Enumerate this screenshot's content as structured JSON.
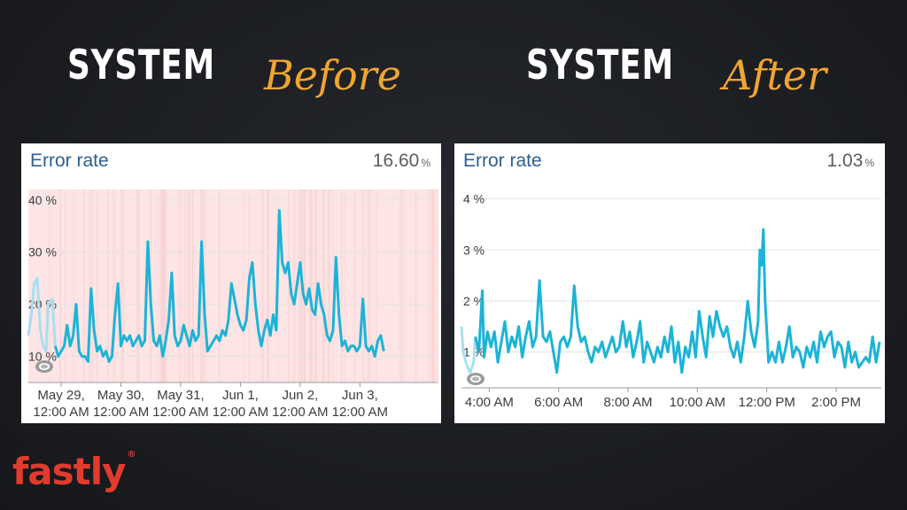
{
  "headings": {
    "left": {
      "word": "SYSTEM",
      "script": "Before"
    },
    "right": {
      "word": "SYSTEM",
      "script": "After"
    }
  },
  "logo": {
    "text": "fastly",
    "reg": "®"
  },
  "colors": {
    "line": "#1cb4d6",
    "heading_script": "#f0a531",
    "logo": "#e23b2e",
    "band": "#f6c9cb"
  },
  "chart_data": [
    {
      "type": "line",
      "title": "Error rate",
      "current_value": "16.60",
      "current_unit": "%",
      "y_ticks": [
        "40 %",
        "30 %",
        "20 %",
        "10 %"
      ],
      "y_tick_values": [
        40,
        30,
        20,
        10
      ],
      "ylim": [
        5,
        42
      ],
      "x_tick_labels": [
        [
          "May 29,",
          "12:00 AM"
        ],
        [
          "May 30,",
          "12:00 AM"
        ],
        [
          "May 31,",
          "12:00 AM"
        ],
        [
          "Jun 1,",
          "12:00 AM"
        ],
        [
          "Jun 2,",
          "12:00 AM"
        ],
        [
          "Jun 3,",
          "12:00 AM"
        ]
      ],
      "x_days": [
        0,
        1,
        2,
        3,
        4,
        5
      ],
      "xlim": [
        -0.55,
        6.3
      ],
      "background_bands": true,
      "series": [
        {
          "values": [
            [
              -0.55,
              14
            ],
            [
              -0.5,
              18
            ],
            [
              -0.45,
              24
            ],
            [
              -0.4,
              25
            ],
            [
              -0.35,
              15
            ],
            [
              -0.3,
              12
            ],
            [
              -0.25,
              11
            ],
            [
              -0.22,
              20
            ],
            [
              -0.15,
              21
            ],
            [
              -0.1,
              12
            ],
            [
              -0.05,
              10
            ],
            [
              0,
              11
            ],
            [
              0.05,
              12
            ],
            [
              0.1,
              16
            ],
            [
              0.15,
              12
            ],
            [
              0.2,
              14
            ],
            [
              0.25,
              20
            ],
            [
              0.3,
              11
            ],
            [
              0.35,
              10
            ],
            [
              0.4,
              10
            ],
            [
              0.45,
              9
            ],
            [
              0.5,
              23
            ],
            [
              0.55,
              15
            ],
            [
              0.6,
              11
            ],
            [
              0.65,
              12
            ],
            [
              0.7,
              10
            ],
            [
              0.75,
              11
            ],
            [
              0.8,
              9
            ],
            [
              0.85,
              10
            ],
            [
              0.9,
              18
            ],
            [
              0.95,
              24
            ],
            [
              1.0,
              12
            ],
            [
              1.05,
              14
            ],
            [
              1.1,
              13
            ],
            [
              1.15,
              14
            ],
            [
              1.2,
              12
            ],
            [
              1.25,
              13
            ],
            [
              1.3,
              14
            ],
            [
              1.35,
              12
            ],
            [
              1.4,
              13
            ],
            [
              1.45,
              32
            ],
            [
              1.5,
              20
            ],
            [
              1.55,
              13
            ],
            [
              1.6,
              12
            ],
            [
              1.65,
              14
            ],
            [
              1.7,
              10
            ],
            [
              1.75,
              13
            ],
            [
              1.8,
              17
            ],
            [
              1.85,
              26
            ],
            [
              1.9,
              14
            ],
            [
              1.95,
              12
            ],
            [
              2.0,
              13
            ],
            [
              2.05,
              16
            ],
            [
              2.1,
              14
            ],
            [
              2.15,
              12
            ],
            [
              2.2,
              15
            ],
            [
              2.25,
              13
            ],
            [
              2.3,
              14
            ],
            [
              2.35,
              32
            ],
            [
              2.4,
              18
            ],
            [
              2.45,
              11
            ],
            [
              2.5,
              12
            ],
            [
              2.55,
              13
            ],
            [
              2.6,
              14
            ],
            [
              2.65,
              13
            ],
            [
              2.7,
              15
            ],
            [
              2.75,
              14
            ],
            [
              2.8,
              17
            ],
            [
              2.85,
              24
            ],
            [
              2.9,
              21
            ],
            [
              2.95,
              18
            ],
            [
              3.0,
              16
            ],
            [
              3.05,
              15
            ],
            [
              3.1,
              17
            ],
            [
              3.15,
              25
            ],
            [
              3.2,
              28
            ],
            [
              3.25,
              20
            ],
            [
              3.3,
              15
            ],
            [
              3.35,
              12
            ],
            [
              3.4,
              15
            ],
            [
              3.45,
              17
            ],
            [
              3.5,
              14
            ],
            [
              3.55,
              18
            ],
            [
              3.6,
              15
            ],
            [
              3.65,
              38
            ],
            [
              3.7,
              28
            ],
            [
              3.75,
              26
            ],
            [
              3.8,
              28
            ],
            [
              3.85,
              22
            ],
            [
              3.9,
              20
            ],
            [
              3.95,
              24
            ],
            [
              4.0,
              28
            ],
            [
              4.05,
              22
            ],
            [
              4.1,
              20
            ],
            [
              4.15,
              23
            ],
            [
              4.2,
              19
            ],
            [
              4.25,
              18
            ],
            [
              4.3,
              24
            ],
            [
              4.35,
              20
            ],
            [
              4.4,
              18
            ],
            [
              4.45,
              14
            ],
            [
              4.5,
              13
            ],
            [
              4.55,
              15
            ],
            [
              4.6,
              29
            ],
            [
              4.65,
              18
            ],
            [
              4.7,
              12
            ],
            [
              4.75,
              13
            ],
            [
              4.8,
              11
            ],
            [
              4.85,
              12
            ],
            [
              4.9,
              12
            ],
            [
              4.95,
              11
            ],
            [
              5.0,
              12
            ],
            [
              5.05,
              21
            ],
            [
              5.1,
              12
            ],
            [
              5.15,
              11
            ],
            [
              5.2,
              12
            ],
            [
              5.25,
              10
            ],
            [
              5.3,
              13
            ],
            [
              5.35,
              14
            ],
            [
              5.4,
              11
            ]
          ]
        }
      ]
    },
    {
      "type": "line",
      "title": "Error rate",
      "current_value": "1.03",
      "current_unit": "%",
      "y_ticks": [
        "4 %",
        "3 %",
        "2 %",
        "1 %"
      ],
      "y_tick_values": [
        4,
        3,
        2,
        1
      ],
      "ylim": [
        0.3,
        4.15
      ],
      "x_tick_labels": [
        "4:00 AM",
        "6:00 AM",
        "8:00 AM",
        "10:00 AM",
        "12:00 PM",
        "2:00 PM"
      ],
      "x_hours": [
        4,
        6,
        8,
        10,
        12,
        14
      ],
      "xlim": [
        3.2,
        15.3
      ],
      "background_bands": false,
      "series": [
        {
          "values": [
            [
              3.2,
              1.5
            ],
            [
              3.25,
              1.0
            ],
            [
              3.35,
              0.75
            ],
            [
              3.45,
              0.6
            ],
            [
              3.55,
              0.8
            ],
            [
              3.6,
              1.3
            ],
            [
              3.7,
              1.0
            ],
            [
              3.8,
              2.2
            ],
            [
              3.85,
              0.9
            ],
            [
              3.95,
              1.4
            ],
            [
              4.05,
              1.1
            ],
            [
              4.15,
              1.4
            ],
            [
              4.25,
              0.8
            ],
            [
              4.35,
              1.2
            ],
            [
              4.45,
              1.6
            ],
            [
              4.55,
              1.0
            ],
            [
              4.65,
              1.3
            ],
            [
              4.75,
              1.1
            ],
            [
              4.85,
              1.5
            ],
            [
              4.95,
              0.9
            ],
            [
              5.05,
              1.3
            ],
            [
              5.15,
              1.6
            ],
            [
              5.25,
              1.1
            ],
            [
              5.35,
              1.3
            ],
            [
              5.45,
              2.4
            ],
            [
              5.55,
              1.3
            ],
            [
              5.65,
              1.2
            ],
            [
              5.75,
              1.4
            ],
            [
              5.85,
              1.0
            ],
            [
              5.95,
              0.6
            ],
            [
              6.05,
              1.2
            ],
            [
              6.15,
              1.3
            ],
            [
              6.25,
              1.1
            ],
            [
              6.35,
              1.3
            ],
            [
              6.45,
              2.3
            ],
            [
              6.55,
              1.5
            ],
            [
              6.65,
              1.2
            ],
            [
              6.75,
              1.3
            ],
            [
              6.85,
              1.0
            ],
            [
              6.95,
              0.8
            ],
            [
              7.05,
              1.1
            ],
            [
              7.15,
              1.0
            ],
            [
              7.25,
              1.2
            ],
            [
              7.35,
              0.9
            ],
            [
              7.45,
              1.1
            ],
            [
              7.55,
              1.3
            ],
            [
              7.65,
              1.0
            ],
            [
              7.75,
              1.1
            ],
            [
              7.85,
              1.6
            ],
            [
              7.95,
              1.1
            ],
            [
              8.05,
              1.4
            ],
            [
              8.15,
              0.9
            ],
            [
              8.25,
              1.2
            ],
            [
              8.35,
              1.6
            ],
            [
              8.45,
              0.8
            ],
            [
              8.55,
              1.2
            ],
            [
              8.65,
              1.0
            ],
            [
              8.75,
              0.8
            ],
            [
              8.85,
              1.1
            ],
            [
              8.95,
              0.9
            ],
            [
              9.05,
              1.3
            ],
            [
              9.15,
              1.0
            ],
            [
              9.25,
              1.5
            ],
            [
              9.35,
              0.8
            ],
            [
              9.45,
              1.2
            ],
            [
              9.55,
              0.6
            ],
            [
              9.65,
              1.1
            ],
            [
              9.75,
              0.9
            ],
            [
              9.85,
              1.4
            ],
            [
              9.95,
              0.9
            ],
            [
              10.05,
              1.8
            ],
            [
              10.15,
              1.3
            ],
            [
              10.25,
              0.9
            ],
            [
              10.35,
              1.7
            ],
            [
              10.45,
              1.3
            ],
            [
              10.55,
              1.8
            ],
            [
              10.65,
              1.5
            ],
            [
              10.75,
              1.3
            ],
            [
              10.85,
              1.5
            ],
            [
              10.95,
              1.1
            ],
            [
              11.05,
              0.9
            ],
            [
              11.15,
              1.2
            ],
            [
              11.25,
              0.8
            ],
            [
              11.35,
              1.3
            ],
            [
              11.45,
              2.0
            ],
            [
              11.55,
              1.4
            ],
            [
              11.65,
              1.1
            ],
            [
              11.75,
              1.6
            ],
            [
              11.8,
              3.0
            ],
            [
              11.85,
              2.7
            ],
            [
              11.9,
              3.4
            ],
            [
              11.95,
              2.0
            ],
            [
              12.05,
              0.8
            ],
            [
              12.15,
              1.0
            ],
            [
              12.25,
              0.8
            ],
            [
              12.35,
              1.2
            ],
            [
              12.45,
              0.8
            ],
            [
              12.55,
              1.1
            ],
            [
              12.65,
              1.5
            ],
            [
              12.75,
              0.9
            ],
            [
              12.85,
              1.1
            ],
            [
              12.95,
              1.0
            ],
            [
              13.05,
              0.7
            ],
            [
              13.15,
              1.1
            ],
            [
              13.25,
              0.9
            ],
            [
              13.35,
              1.2
            ],
            [
              13.45,
              0.8
            ],
            [
              13.55,
              1.4
            ],
            [
              13.65,
              1.1
            ],
            [
              13.75,
              1.3
            ],
            [
              13.85,
              1.4
            ],
            [
              13.95,
              0.9
            ],
            [
              14.05,
              1.2
            ],
            [
              14.15,
              1.1
            ],
            [
              14.25,
              0.7
            ],
            [
              14.35,
              1.2
            ],
            [
              14.45,
              0.8
            ],
            [
              14.55,
              1.0
            ],
            [
              14.65,
              0.7
            ],
            [
              14.75,
              0.8
            ],
            [
              14.85,
              0.9
            ],
            [
              14.95,
              0.8
            ],
            [
              15.05,
              1.3
            ],
            [
              15.15,
              0.8
            ],
            [
              15.25,
              1.2
            ]
          ]
        }
      ]
    }
  ]
}
